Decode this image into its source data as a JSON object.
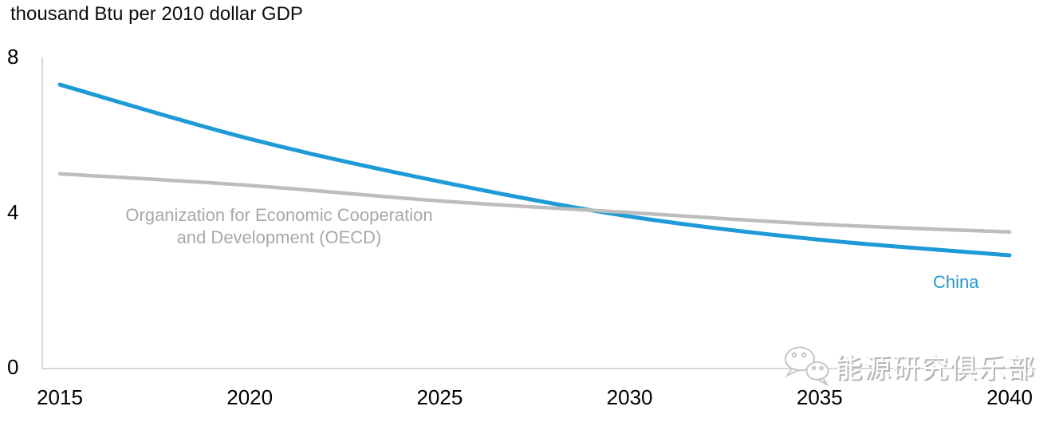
{
  "title": "thousand Btu per 2010 dollar GDP",
  "axes": {
    "y_ticks": [
      "8",
      "4",
      "0"
    ],
    "x_ticks": [
      "2015",
      "2020",
      "2025",
      "2030",
      "2035",
      "2040"
    ]
  },
  "series_labels": {
    "oecd_line1": "Organization for Economic Cooperation",
    "oecd_line2": "and Development (OECD)",
    "china": "China"
  },
  "watermark": {
    "icon": "wechat-icon",
    "text": "能源研究俱乐部"
  },
  "colors": {
    "china_line": "#1e9ad6",
    "oecd_line": "#bdbdbd",
    "oecd_text": "#a8a8a8",
    "china_text": "#1e9ad6",
    "axis_line": "#d7d7d7",
    "tick_text": "#000000"
  },
  "chart_data": {
    "type": "line",
    "title": "thousand Btu per 2010 dollar GDP",
    "xlabel": "",
    "ylabel": "thousand Btu per 2010 dollar GDP",
    "x": [
      2015,
      2020,
      2025,
      2030,
      2035,
      2040
    ],
    "series": [
      {
        "name": "China",
        "color": "#1e9ad6",
        "stroke_width": 5,
        "values": [
          7.3,
          5.9,
          4.8,
          3.9,
          3.3,
          2.9
        ]
      },
      {
        "name": "Organization for Economic Cooperation and Development (OECD)",
        "color": "#bdbdbd",
        "stroke_width": 4.5,
        "values": [
          5.0,
          4.7,
          4.3,
          4.0,
          3.7,
          3.5
        ]
      }
    ],
    "xlim": [
      2015,
      2040
    ],
    "ylim": [
      0,
      8
    ],
    "xticks": [
      2015,
      2020,
      2025,
      2030,
      2035,
      2040
    ],
    "yticks": [
      8,
      4,
      0
    ],
    "grid": false,
    "legend": "inline-labels",
    "notes": "China and OECD lines cross at about value 4 just before 2030"
  }
}
